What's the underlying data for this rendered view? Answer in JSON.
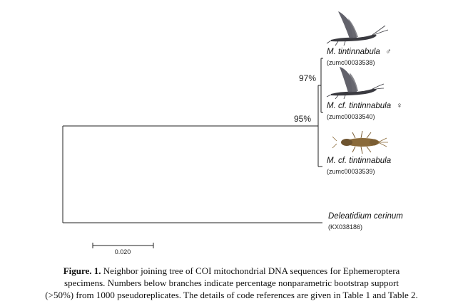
{
  "tree": {
    "taxa": [
      {
        "name_prefix": "M. tintinnabula",
        "sex_symbol": "♂",
        "code": "(zumc00033538)",
        "image": "adult mayfly male"
      },
      {
        "name_prefix": "M. cf. tintinnabula",
        "sex_symbol": "♀",
        "code": "(zumc00033540)",
        "image": "adult mayfly female"
      },
      {
        "name_prefix": "M. cf. tintinnabula",
        "sex_symbol": "",
        "code": "(zumc00033539)",
        "image": "mayfly nymph"
      },
      {
        "name_prefix": "Deleatidium cerinum",
        "sex_symbol": "",
        "code": "(KX038186)",
        "image": ""
      }
    ],
    "support_values": {
      "inner_clade": "97%",
      "ingroup_clade": "95%"
    },
    "scale_bar": {
      "value": 0.02,
      "label": "0.020"
    }
  },
  "caption": {
    "label": "Figure. 1.",
    "line1": " Neighbor joining tree of COI mitochondrial DNA sequences for Ephemeroptera",
    "line2": "specimens. Numbers below branches indicate percentage nonparametric bootstrap support",
    "line3": "(>50%) from 1000 pseudoreplicates. The details of code references are given in Table 1 and Table 2."
  },
  "colors": {
    "line": "#222222",
    "mayfly_wing": "#4a4a52",
    "nymph_body": "#8a6a3a"
  }
}
